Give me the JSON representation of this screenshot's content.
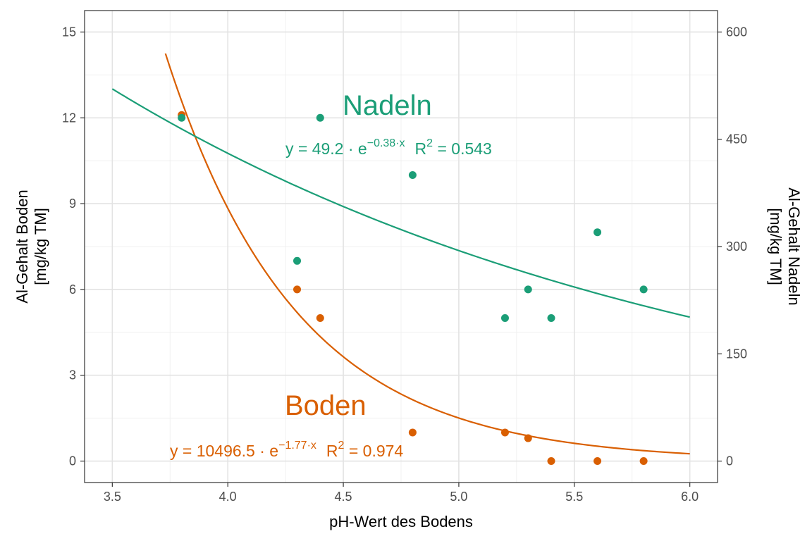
{
  "chart_data": {
    "type": "scatter",
    "xlabel": "pH-Wert des Bodens",
    "ylabel_left": [
      "Al-Gehalt Boden",
      "[mg/kg TM]"
    ],
    "ylabel_right": [
      "Al-Gehalt Nadeln",
      "[mg/kg TM]"
    ],
    "xlim": [
      3.38,
      6.12
    ],
    "ylim_left": [
      -0.75,
      15.75
    ],
    "ylim_right": [
      -30,
      630
    ],
    "x_ticks": [
      3.5,
      4.0,
      4.5,
      5.0,
      5.5,
      6.0
    ],
    "x_tick_labels": [
      "3.5",
      "4.0",
      "4.5",
      "5.0",
      "5.5",
      "6.0"
    ],
    "y_left_ticks": [
      0,
      3,
      6,
      9,
      12,
      15
    ],
    "y_left_tick_labels": [
      "0",
      "3",
      "6",
      "9",
      "12",
      "15"
    ],
    "y_right_ticks": [
      0,
      150,
      300,
      450,
      600
    ],
    "y_right_tick_labels": [
      "0",
      "150",
      "300",
      "450",
      "600"
    ],
    "grid": true,
    "legend": "none",
    "series": [
      {
        "name": "Boden",
        "axis": "left",
        "color": "#d95f02",
        "points": [
          [
            3.8,
            12.1
          ],
          [
            4.3,
            6.0
          ],
          [
            4.4,
            5.0
          ],
          [
            4.8,
            1.0
          ],
          [
            5.2,
            1.0
          ],
          [
            5.3,
            0.8
          ],
          [
            5.4,
            0.0
          ],
          [
            5.6,
            0.0
          ],
          [
            5.8,
            0.0
          ]
        ],
        "fit": {
          "a": 10496.5,
          "b": 1.77,
          "x_range": [
            3.73,
            6.0
          ]
        },
        "equation": {
          "lead": "y = 10496.5 · e",
          "exp": "−1.77·x",
          "r2_lead": "R",
          "r2_exp": "2",
          "r2_tail": " = 0.974"
        }
      },
      {
        "name": "Nadeln",
        "axis": "right",
        "color": "#1b9e77",
        "points": [
          [
            3.8,
            480
          ],
          [
            4.3,
            280
          ],
          [
            4.4,
            480
          ],
          [
            4.8,
            400
          ],
          [
            5.2,
            200
          ],
          [
            5.3,
            240
          ],
          [
            5.4,
            200
          ],
          [
            5.6,
            320
          ],
          [
            5.8,
            240
          ]
        ],
        "fit": {
          "a": 49.2,
          "b": 0.38,
          "scale": 40,
          "x_range": [
            3.5,
            6.0
          ]
        },
        "equation": {
          "lead": "y = 49.2 · e",
          "exp": "−0.38·x",
          "r2_lead": "R",
          "r2_exp": "2",
          "r2_tail": " = 0.543"
        }
      }
    ]
  }
}
